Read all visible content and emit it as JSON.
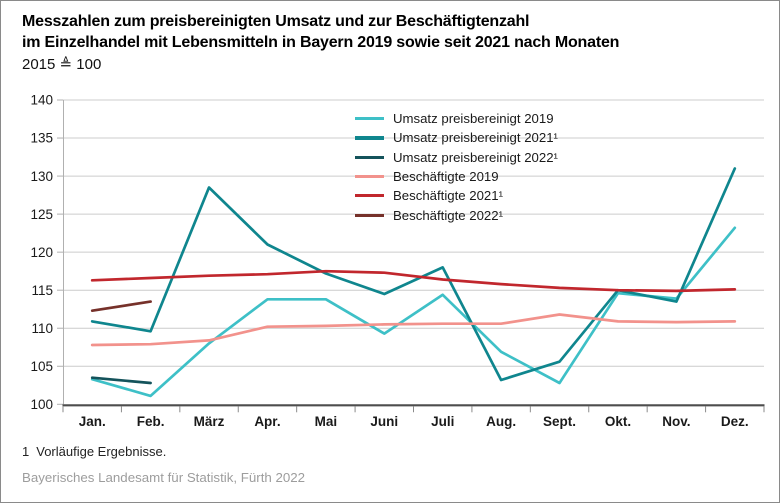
{
  "header": {
    "title_line1": "Messzahlen zum preisbereinigten Umsatz und zur Beschäftigtenzahl",
    "title_line2": "im Einzelhandel mit Lebensmitteln in Bayern 2019 sowie seit 2021 nach Monaten",
    "base_note": "2015 ≜ 100"
  },
  "chart_data": {
    "type": "line",
    "title": "Messzahlen zum preisbereinigten Umsatz und zur Beschäftigtenzahl im Einzelhandel mit Lebensmitteln in Bayern 2019 sowie seit 2021 nach Monaten",
    "subtitle": "2015 ≜ 100",
    "categories": [
      "Jan.",
      "Feb.",
      "März",
      "Apr.",
      "Mai",
      "Juni",
      "Juli",
      "Aug.",
      "Sept.",
      "Okt.",
      "Nov.",
      "Dez."
    ],
    "ylim": [
      100,
      140
    ],
    "ytick_step": 5,
    "grid": "horizontal",
    "legend_position": "top-center-inside",
    "series": [
      {
        "name": "Umsatz preisbereinigt 2019",
        "color": "#3EC0C7",
        "values": [
          103.3,
          101.1,
          108.0,
          113.8,
          113.8,
          109.3,
          114.4,
          106.9,
          102.8,
          114.6,
          113.9,
          123.2
        ]
      },
      {
        "name": "Umsatz preisbereinigt 2021¹",
        "color": "#0F868E",
        "values": [
          110.9,
          109.6,
          128.5,
          121.0,
          117.2,
          114.5,
          118.0,
          103.2,
          105.6,
          115.0,
          113.5,
          131.0
        ]
      },
      {
        "name": "Umsatz preisbereinigt 2022¹",
        "color": "#14535B",
        "values": [
          103.5,
          102.8
        ]
      },
      {
        "name": "Beschäftigte 2019",
        "color": "#F2928C",
        "values": [
          107.8,
          107.9,
          108.4,
          110.2,
          110.3,
          110.5,
          110.6,
          110.6,
          111.8,
          110.9,
          110.8,
          110.9
        ]
      },
      {
        "name": "Beschäftigte 2021¹",
        "color": "#C1272D",
        "values": [
          116.3,
          116.6,
          116.9,
          117.1,
          117.5,
          117.3,
          116.4,
          115.8,
          115.3,
          115.0,
          114.9,
          115.1
        ]
      },
      {
        "name": "Beschäftigte 2022¹",
        "color": "#76312A",
        "values": [
          112.3,
          113.5
        ]
      }
    ]
  },
  "footer": {
    "footnote_marker": "1",
    "footnote_text": "Vorläufige Ergebnisse.",
    "source": "Bayerisches Landesamt für Statistik, Fürth 2022"
  }
}
